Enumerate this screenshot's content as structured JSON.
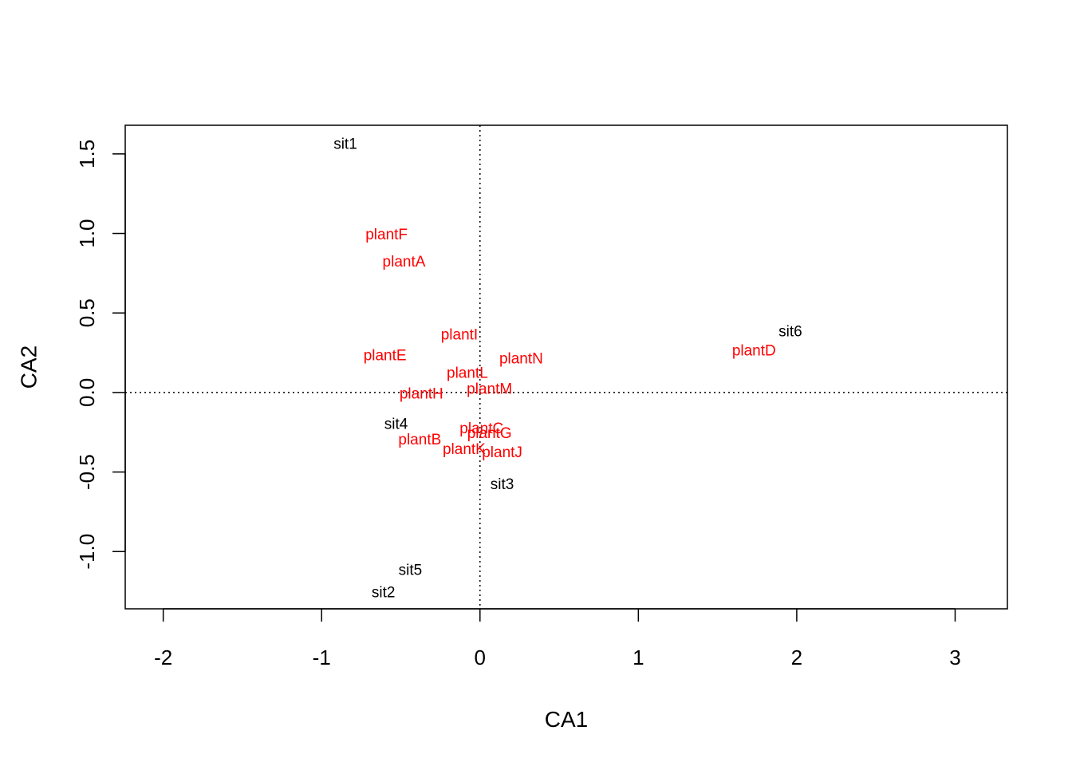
{
  "chart_data": {
    "type": "scatter",
    "title": "",
    "xlabel": "CA1",
    "ylabel": "CA2",
    "xlim": [
      -2.24,
      3.33
    ],
    "ylim": [
      -1.36,
      1.68
    ],
    "xticks": [
      -2,
      -1,
      0,
      1,
      2,
      3
    ],
    "yticks": [
      -1.0,
      -0.5,
      0.0,
      0.5,
      1.0,
      1.5
    ],
    "xtick_labels": [
      "-2",
      "-1",
      "0",
      "1",
      "2",
      "3"
    ],
    "ytick_labels": [
      "-1.0",
      "-0.5",
      "0.0",
      "0.5",
      "1.0",
      "1.5"
    ],
    "reference_lines": {
      "x": 0,
      "y": 0,
      "style": "dotted"
    },
    "grid": false,
    "legend": "none",
    "series": [
      {
        "color": "#000000",
        "points": [
          {
            "label": "sit1",
            "x": -0.85,
            "y": 1.56
          },
          {
            "label": "sit2",
            "x": -0.61,
            "y": -1.26
          },
          {
            "label": "sit3",
            "x": 0.14,
            "y": -0.58
          },
          {
            "label": "sit4",
            "x": -0.53,
            "y": -0.2
          },
          {
            "label": "sit5",
            "x": -0.44,
            "y": -1.12
          },
          {
            "label": "sit6",
            "x": 1.96,
            "y": 0.38
          }
        ]
      },
      {
        "color": "#ff0000",
        "points": [
          {
            "label": "plantA",
            "x": -0.48,
            "y": 0.82
          },
          {
            "label": "plantB",
            "x": -0.38,
            "y": -0.3
          },
          {
            "label": "plantC",
            "x": 0.01,
            "y": -0.23
          },
          {
            "label": "plantD",
            "x": 1.73,
            "y": 0.26
          },
          {
            "label": "plantE",
            "x": -0.6,
            "y": 0.23
          },
          {
            "label": "plantF",
            "x": -0.59,
            "y": 0.99
          },
          {
            "label": "plantG",
            "x": 0.06,
            "y": -0.26
          },
          {
            "label": "plantH",
            "x": -0.37,
            "y": -0.01
          },
          {
            "label": "plantI",
            "x": -0.13,
            "y": 0.36
          },
          {
            "label": "plantJ",
            "x": 0.14,
            "y": -0.38
          },
          {
            "label": "plantK",
            "x": -0.1,
            "y": -0.36
          },
          {
            "label": "plantL",
            "x": -0.08,
            "y": 0.12
          },
          {
            "label": "plantM",
            "x": 0.06,
            "y": 0.02
          },
          {
            "label": "plantN",
            "x": 0.26,
            "y": 0.21
          }
        ]
      }
    ]
  }
}
